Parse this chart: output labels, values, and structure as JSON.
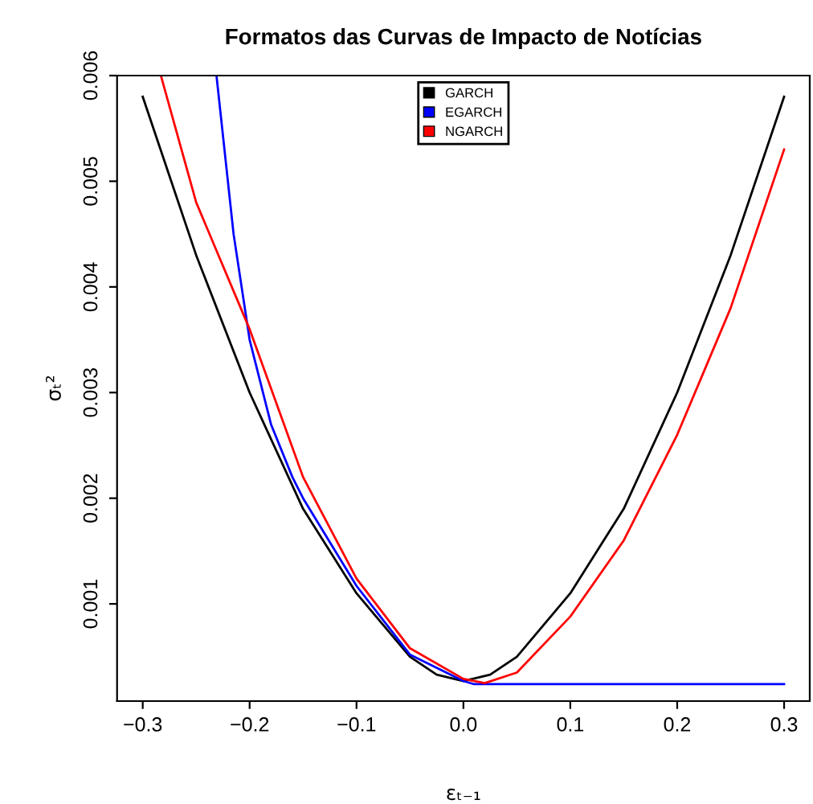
{
  "chart_data": {
    "type": "line",
    "title": "Formatos das Curvas de Impacto de Notícias",
    "xlabel": "εₜ₋₁",
    "ylabel": "σₜ²",
    "series": [
      {
        "name": "GARCH",
        "color": "#000000",
        "x": [
          -0.3,
          -0.25,
          -0.2,
          -0.15,
          -0.1,
          -0.05,
          -0.025,
          0,
          0.025,
          0.05,
          0.1,
          0.15,
          0.2,
          0.25,
          0.3
        ],
        "values": [
          0.0058,
          0.0043,
          0.003,
          0.0019,
          0.0011,
          0.0005,
          0.00033,
          0.00027,
          0.00033,
          0.0005,
          0.0011,
          0.0019,
          0.003,
          0.0043,
          0.0058
        ]
      },
      {
        "name": "EGARCH",
        "color": "#0000ff",
        "x": [
          -0.231,
          -0.215,
          -0.2,
          -0.18,
          -0.16,
          -0.15,
          -0.1,
          -0.05,
          0,
          0.01,
          0.1,
          0.2,
          0.3
        ],
        "values": [
          0.006,
          0.0045,
          0.0035,
          0.0027,
          0.0022,
          0.002,
          0.00117,
          0.00052,
          0.00027,
          0.00024,
          0.00024,
          0.00024,
          0.00024
        ]
      },
      {
        "name": "NGARCH",
        "color": "#ff0000",
        "x": [
          -0.283,
          -0.25,
          -0.2,
          -0.15,
          -0.1,
          -0.05,
          0,
          0.02,
          0.05,
          0.1,
          0.15,
          0.2,
          0.25,
          0.3
        ],
        "values": [
          0.006,
          0.0048,
          0.0036,
          0.0022,
          0.00124,
          0.00058,
          0.00029,
          0.00025,
          0.00035,
          0.00088,
          0.0016,
          0.0026,
          0.0038,
          0.0053
        ]
      }
    ],
    "xlim": [
      -0.324,
      0.324
    ],
    "ylim": [
      8e-05,
      0.006
    ],
    "xticks": [
      {
        "value": -0.3,
        "label": "−0.3"
      },
      {
        "value": -0.2,
        "label": "−0.2"
      },
      {
        "value": -0.1,
        "label": "−0.1"
      },
      {
        "value": 0,
        "label": "0.0"
      },
      0.1,
      0.2,
      0.3
    ],
    "yticks": [
      0.001,
      0.002,
      0.003,
      0.004,
      0.005,
      0.006
    ],
    "legend": "top",
    "grid": false,
    "marker": "none",
    "line_style": "solid"
  }
}
